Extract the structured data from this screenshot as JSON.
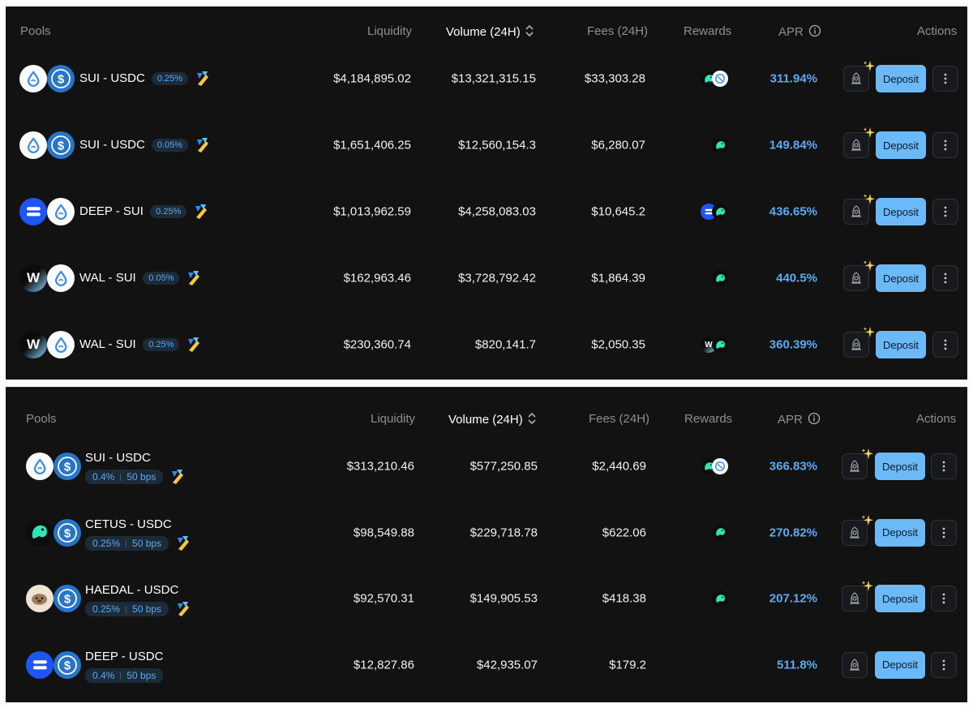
{
  "headers": {
    "pools": "Pools",
    "liquidity": "Liquidity",
    "volume": "Volume (24H)",
    "fees": "Fees (24H)",
    "rewards": "Rewards",
    "apr": "APR",
    "actions": "Actions"
  },
  "deposit_label": "Deposit",
  "colors": {
    "accent": "#5aaaf5",
    "deposit_bg": "#6cb9f7",
    "panel_bg": "#121212"
  },
  "top_pools": [
    {
      "pair": "SUI - USDC",
      "fee": "0.25%",
      "tokens": [
        "sui",
        "usdc"
      ],
      "liquidity": "$4,184,895.02",
      "volume": "$13,321,315.15",
      "fees": "$33,303.28",
      "apr": "311.94%",
      "rewards": [
        "cetus",
        "sui-rewards"
      ],
      "sparkle": true
    },
    {
      "pair": "SUI - USDC",
      "fee": "0.05%",
      "tokens": [
        "sui",
        "usdc"
      ],
      "liquidity": "$1,651,406.25",
      "volume": "$12,560,154.3",
      "fees": "$6,280.07",
      "apr": "149.84%",
      "rewards": [
        "cetus"
      ],
      "sparkle": true
    },
    {
      "pair": "DEEP - SUI",
      "fee": "0.25%",
      "tokens": [
        "deep",
        "sui"
      ],
      "liquidity": "$1,013,962.59",
      "volume": "$4,258,083.03",
      "fees": "$10,645.2",
      "apr": "436.65%",
      "rewards": [
        "deep",
        "cetus"
      ],
      "sparkle": true
    },
    {
      "pair": "WAL - SUI",
      "fee": "0.05%",
      "tokens": [
        "wal",
        "sui"
      ],
      "liquidity": "$162,963.46",
      "volume": "$3,728,792.42",
      "fees": "$1,864.39",
      "apr": "440.5%",
      "rewards": [
        "cetus"
      ],
      "sparkle": true
    },
    {
      "pair": "WAL - SUI",
      "fee": "0.25%",
      "tokens": [
        "wal",
        "sui"
      ],
      "liquidity": "$230,360.74",
      "volume": "$820,141.7",
      "fees": "$2,050.35",
      "apr": "360.39%",
      "rewards": [
        "wal",
        "cetus"
      ],
      "sparkle": true
    }
  ],
  "bottom_pools": [
    {
      "pair": "SUI - USDC",
      "fee": "0.4%",
      "bps": "50 bps",
      "tokens": [
        "sui",
        "usdc"
      ],
      "liquidity": "$313,210.46",
      "volume": "$577,250.85",
      "fees": "$2,440.69",
      "apr": "366.83%",
      "rewards": [
        "cetus",
        "sui-rewards"
      ],
      "sparkle": true,
      "flag": true
    },
    {
      "pair": "CETUS - USDC",
      "fee": "0.25%",
      "bps": "50 bps",
      "tokens": [
        "cetus",
        "usdc"
      ],
      "liquidity": "$98,549.88",
      "volume": "$229,718.78",
      "fees": "$622.06",
      "apr": "270.82%",
      "rewards": [
        "cetus"
      ],
      "sparkle": true,
      "flag": true
    },
    {
      "pair": "HAEDAL - USDC",
      "fee": "0.25%",
      "bps": "50 bps",
      "tokens": [
        "haedal",
        "usdc"
      ],
      "liquidity": "$92,570.31",
      "volume": "$149,905.53",
      "fees": "$418.38",
      "apr": "207.12%",
      "rewards": [
        "cetus"
      ],
      "sparkle": true,
      "flag": true
    },
    {
      "pair": "DEEP - USDC",
      "fee": "0.4%",
      "bps": "50 bps",
      "tokens": [
        "deep",
        "usdc"
      ],
      "liquidity": "$12,827.86",
      "volume": "$42,935.07",
      "fees": "$179.2",
      "apr": "511.8%",
      "rewards": [],
      "sparkle": false,
      "flag": false
    }
  ]
}
